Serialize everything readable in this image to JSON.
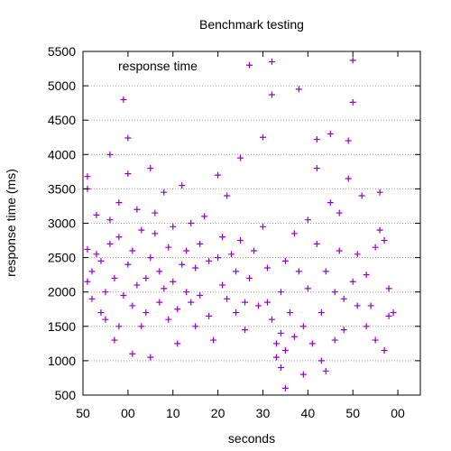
{
  "chart_data": {
    "type": "scatter",
    "title": "Benchmark testing",
    "xlabel": "seconds",
    "ylabel": "response time (ms)",
    "xlim": [
      0,
      75
    ],
    "ylim": [
      500,
      5500
    ],
    "x_ticks": [
      0,
      10,
      20,
      30,
      40,
      50,
      60,
      70
    ],
    "x_tick_labels": [
      "50",
      "00",
      "10",
      "20",
      "30",
      "40",
      "50",
      "00"
    ],
    "y_ticks": [
      500,
      1000,
      1500,
      2000,
      2500,
      3000,
      3500,
      4000,
      4500,
      5000,
      5500
    ],
    "y_tick_labels": [
      "500",
      "1000",
      "1500",
      "2000",
      "2500",
      "3000",
      "3500",
      "4000",
      "4500",
      "5000",
      "5500"
    ],
    "grid": "horizontal dotted",
    "legend": "top-left",
    "marker": "plus",
    "series": [
      {
        "name": "response time",
        "color": "#9400d3",
        "points": [
          [
            1,
            2620
          ],
          [
            1,
            2150
          ],
          [
            1,
            3500
          ],
          [
            1,
            3680
          ],
          [
            2,
            1900
          ],
          [
            2,
            2300
          ],
          [
            3,
            2550
          ],
          [
            3,
            3120
          ],
          [
            4,
            2450
          ],
          [
            4,
            1700
          ],
          [
            5,
            1600
          ],
          [
            5,
            2000
          ],
          [
            6,
            2700
          ],
          [
            6,
            3050
          ],
          [
            6,
            4000
          ],
          [
            7,
            1300
          ],
          [
            7,
            2200
          ],
          [
            8,
            1500
          ],
          [
            8,
            2800
          ],
          [
            8,
            3300
          ],
          [
            9,
            4800
          ],
          [
            9,
            1950
          ],
          [
            10,
            4240
          ],
          [
            10,
            3720
          ],
          [
            10,
            2400
          ],
          [
            11,
            2600
          ],
          [
            11,
            1800
          ],
          [
            11,
            1100
          ],
          [
            12,
            2100
          ],
          [
            12,
            3200
          ],
          [
            13,
            1500
          ],
          [
            13,
            2900
          ],
          [
            14,
            2200
          ],
          [
            14,
            1700
          ],
          [
            15,
            3800
          ],
          [
            15,
            2500
          ],
          [
            15,
            1050
          ],
          [
            16,
            2850
          ],
          [
            16,
            3150
          ],
          [
            17,
            2300
          ],
          [
            17,
            1850
          ],
          [
            18,
            2050
          ],
          [
            18,
            3450
          ],
          [
            19,
            1600
          ],
          [
            19,
            2650
          ],
          [
            20,
            2950
          ],
          [
            20,
            2150
          ],
          [
            21,
            1750
          ],
          [
            21,
            1250
          ],
          [
            22,
            3550
          ],
          [
            22,
            2400
          ],
          [
            23,
            2600
          ],
          [
            23,
            2000
          ],
          [
            24,
            3000
          ],
          [
            24,
            1850
          ],
          [
            25,
            2350
          ],
          [
            25,
            1500
          ],
          [
            26,
            2700
          ],
          [
            26,
            1950
          ],
          [
            27,
            3100
          ],
          [
            28,
            2450
          ],
          [
            28,
            1650
          ],
          [
            29,
            1300
          ],
          [
            30,
            2500
          ],
          [
            30,
            3700
          ],
          [
            31,
            2100
          ],
          [
            31,
            2800
          ],
          [
            32,
            1900
          ],
          [
            32,
            3400
          ],
          [
            33,
            2550
          ],
          [
            34,
            1700
          ],
          [
            34,
            2300
          ],
          [
            35,
            3950
          ],
          [
            35,
            2750
          ],
          [
            36,
            1850
          ],
          [
            36,
            1450
          ],
          [
            37,
            2200
          ],
          [
            37,
            5300
          ],
          [
            38,
            2600
          ],
          [
            39,
            1800
          ],
          [
            40,
            4250
          ],
          [
            40,
            2950
          ],
          [
            41,
            1850
          ],
          [
            41,
            2350
          ],
          [
            42,
            5350
          ],
          [
            42,
            4870
          ],
          [
            42,
            1600
          ],
          [
            43,
            1250
          ],
          [
            43,
            1050
          ],
          [
            44,
            1400
          ],
          [
            44,
            900
          ],
          [
            44,
            2000
          ],
          [
            45,
            600
          ],
          [
            45,
            1150
          ],
          [
            45,
            2450
          ],
          [
            46,
            1700
          ],
          [
            47,
            2850
          ],
          [
            47,
            1350
          ],
          [
            48,
            4950
          ],
          [
            48,
            2300
          ],
          [
            49,
            1500
          ],
          [
            49,
            800
          ],
          [
            50,
            2050
          ],
          [
            50,
            3050
          ],
          [
            51,
            1250
          ],
          [
            52,
            4220
          ],
          [
            52,
            3800
          ],
          [
            52,
            2700
          ],
          [
            53,
            1000
          ],
          [
            53,
            1700
          ],
          [
            54,
            850
          ],
          [
            54,
            2300
          ],
          [
            55,
            4300
          ],
          [
            55,
            3300
          ],
          [
            56,
            2000
          ],
          [
            56,
            1300
          ],
          [
            57,
            2600
          ],
          [
            57,
            3150
          ],
          [
            58,
            1900
          ],
          [
            58,
            1450
          ],
          [
            59,
            4200
          ],
          [
            59,
            3650
          ],
          [
            60,
            5370
          ],
          [
            60,
            4760
          ],
          [
            60,
            2150
          ],
          [
            61,
            1800
          ],
          [
            61,
            2550
          ],
          [
            62,
            3400
          ],
          [
            63,
            1500
          ],
          [
            63,
            2250
          ],
          [
            64,
            1800
          ],
          [
            65,
            2650
          ],
          [
            65,
            1300
          ],
          [
            66,
            3450
          ],
          [
            66,
            2900
          ],
          [
            67,
            1150
          ],
          [
            67,
            2750
          ],
          [
            68,
            1650
          ],
          [
            68,
            2050
          ],
          [
            69,
            1700
          ]
        ]
      }
    ]
  }
}
